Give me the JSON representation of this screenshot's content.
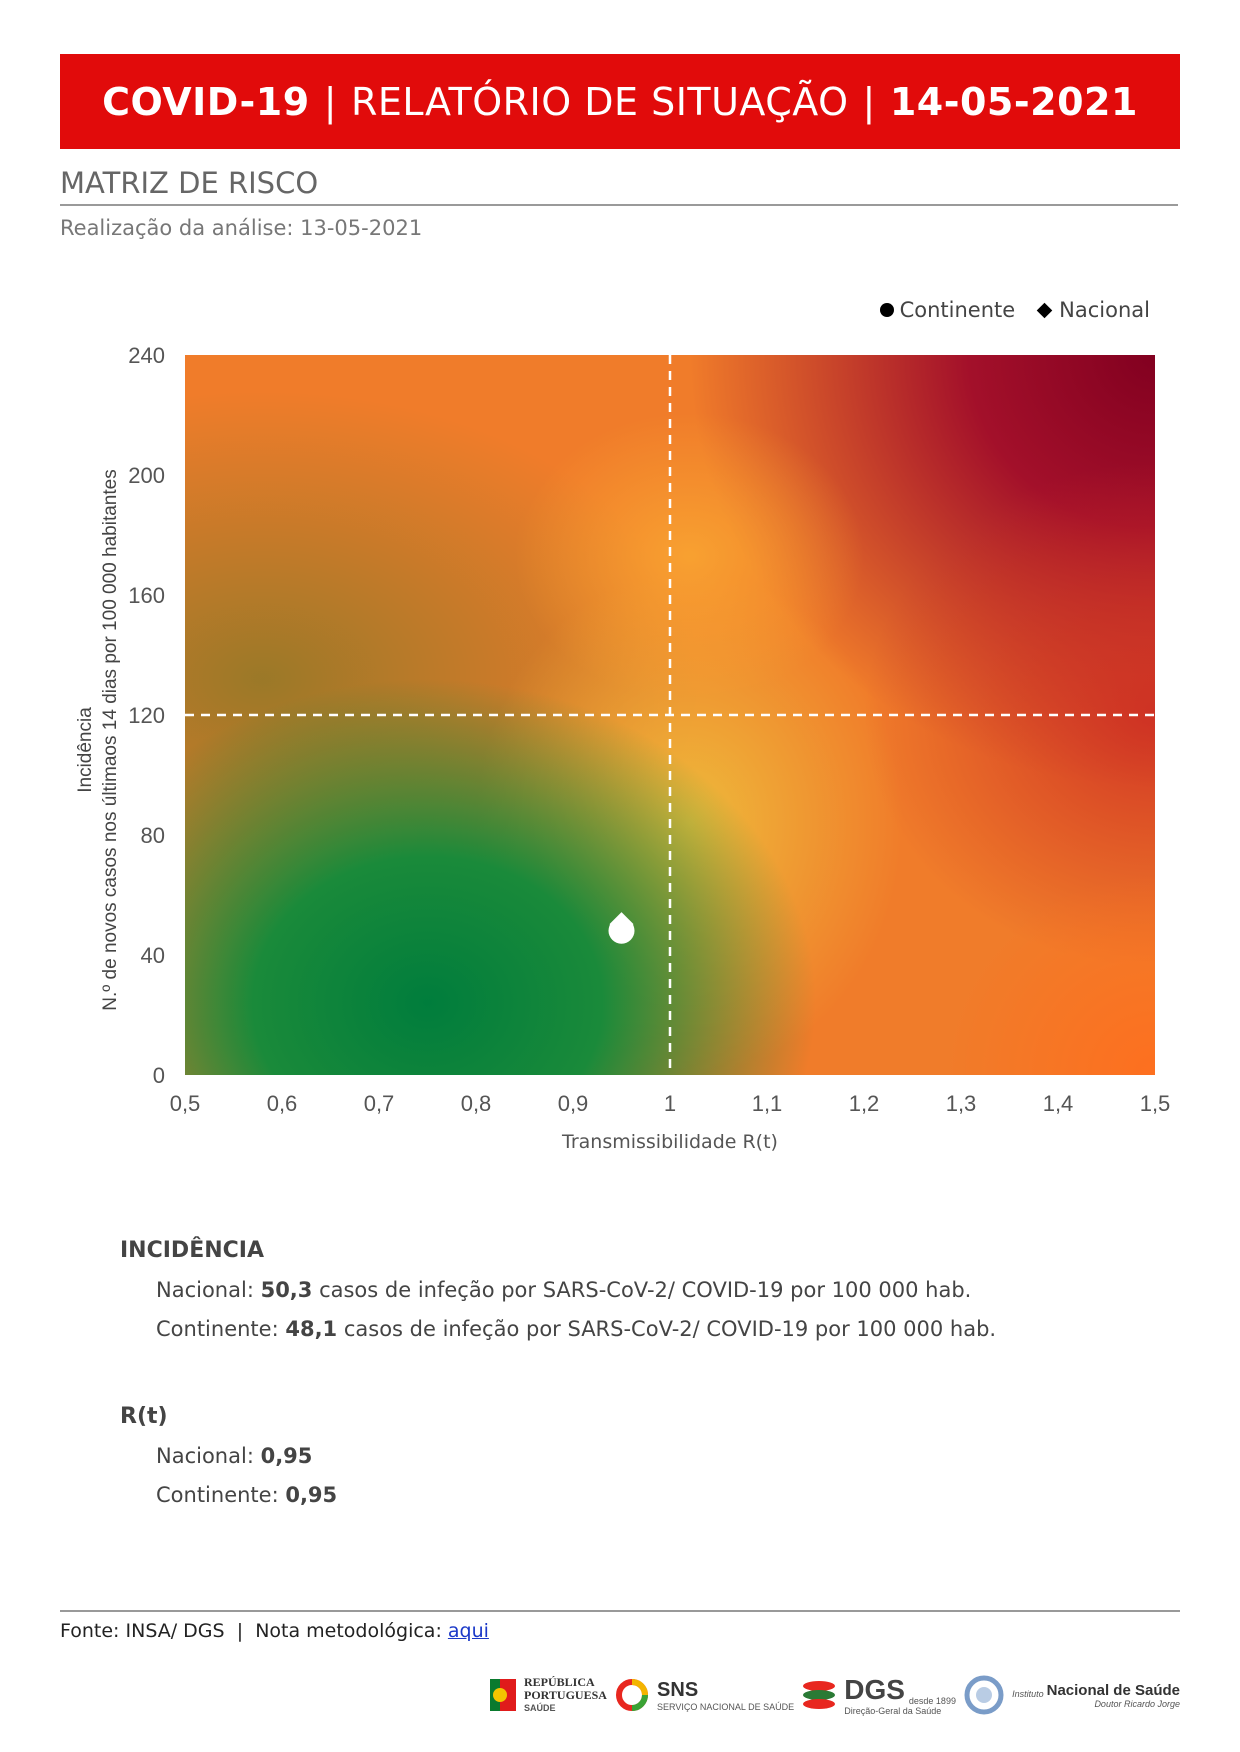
{
  "header": {
    "left": "COVID-19",
    "middle": "RELATÓRIO DE SITUAÇÃO",
    "date": "14-05-2021",
    "separator": "|"
  },
  "section": {
    "title": "MATRIZ DE RISCO",
    "subtitle": "Realização da análise: 13-05-2021"
  },
  "chart_data": {
    "type": "scatter",
    "title": "",
    "xlabel": "Transmissibilidade R(t)",
    "ylabel_line1": "Incidência",
    "ylabel_line2": "N.º de novos casos nos últimaos 14 dias por 100 000 habitantes",
    "xlim": [
      0.5,
      1.5
    ],
    "ylim": [
      0,
      240
    ],
    "x_ticks": [
      "0,5",
      "0,6",
      "0,7",
      "0,8",
      "0,9",
      "1",
      "1,1",
      "1,2",
      "1,3",
      "1,4",
      "1,5"
    ],
    "x_tick_values": [
      0.5,
      0.6,
      0.7,
      0.8,
      0.9,
      1.0,
      1.1,
      1.2,
      1.3,
      1.4,
      1.5
    ],
    "y_ticks": [
      "0",
      "40",
      "80",
      "120",
      "160",
      "200",
      "240"
    ],
    "y_tick_values": [
      0,
      40,
      80,
      120,
      160,
      200,
      240
    ],
    "thresholds": {
      "x": 1.0,
      "y": 120
    },
    "legend_position": "top-right",
    "series": [
      {
        "name": "Continente",
        "marker": "circle",
        "x": 0.95,
        "y": 48.1
      },
      {
        "name": "Nacional",
        "marker": "diamond",
        "x": 0.95,
        "y": 50.3
      }
    ],
    "colors": {
      "low_risk": "#007d3c",
      "medium_risk": "#f0a830",
      "high_risk": "#820020",
      "marker": "#ffffff",
      "threshold_line": "#ffffff"
    }
  },
  "incidencia": {
    "heading": "INCIDÊNCIA",
    "nacional_label": "Nacional: ",
    "nacional_value": "50,3",
    "nacional_text": " casos de infeção por SARS-CoV-2/ COVID-19 por 100 000 hab.",
    "continente_label": "Continente: ",
    "continente_value": "48,1",
    "continente_text": " casos de infeção por SARS-CoV-2/ COVID-19 por 100 000 hab."
  },
  "rt": {
    "heading": "R(t)",
    "nacional_label": "Nacional: ",
    "nacional_value": "0,95",
    "continente_label": "Continente: ",
    "continente_value": "0,95"
  },
  "footer": {
    "fonte": "Fonte: INSA/ DGS",
    "separator": "|",
    "nota_label": "Nota metodológica:",
    "link_text": "aqui"
  },
  "logos": {
    "republica_line1": "REPÚBLICA",
    "republica_line2": "PORTUGUESA",
    "republica_line3": "SAÚDE",
    "sns_big": "SNS",
    "sns_small": "SERVIÇO NACIONAL DE SAÚDE",
    "dgs_big": "DGS",
    "dgs_small": "Direção-Geral da Saúde",
    "dgs_since": "desde 1899",
    "insa_prefix": "Instituto",
    "insa_big": "Nacional de Saúde",
    "insa_small": "Doutor Ricardo Jorge"
  }
}
